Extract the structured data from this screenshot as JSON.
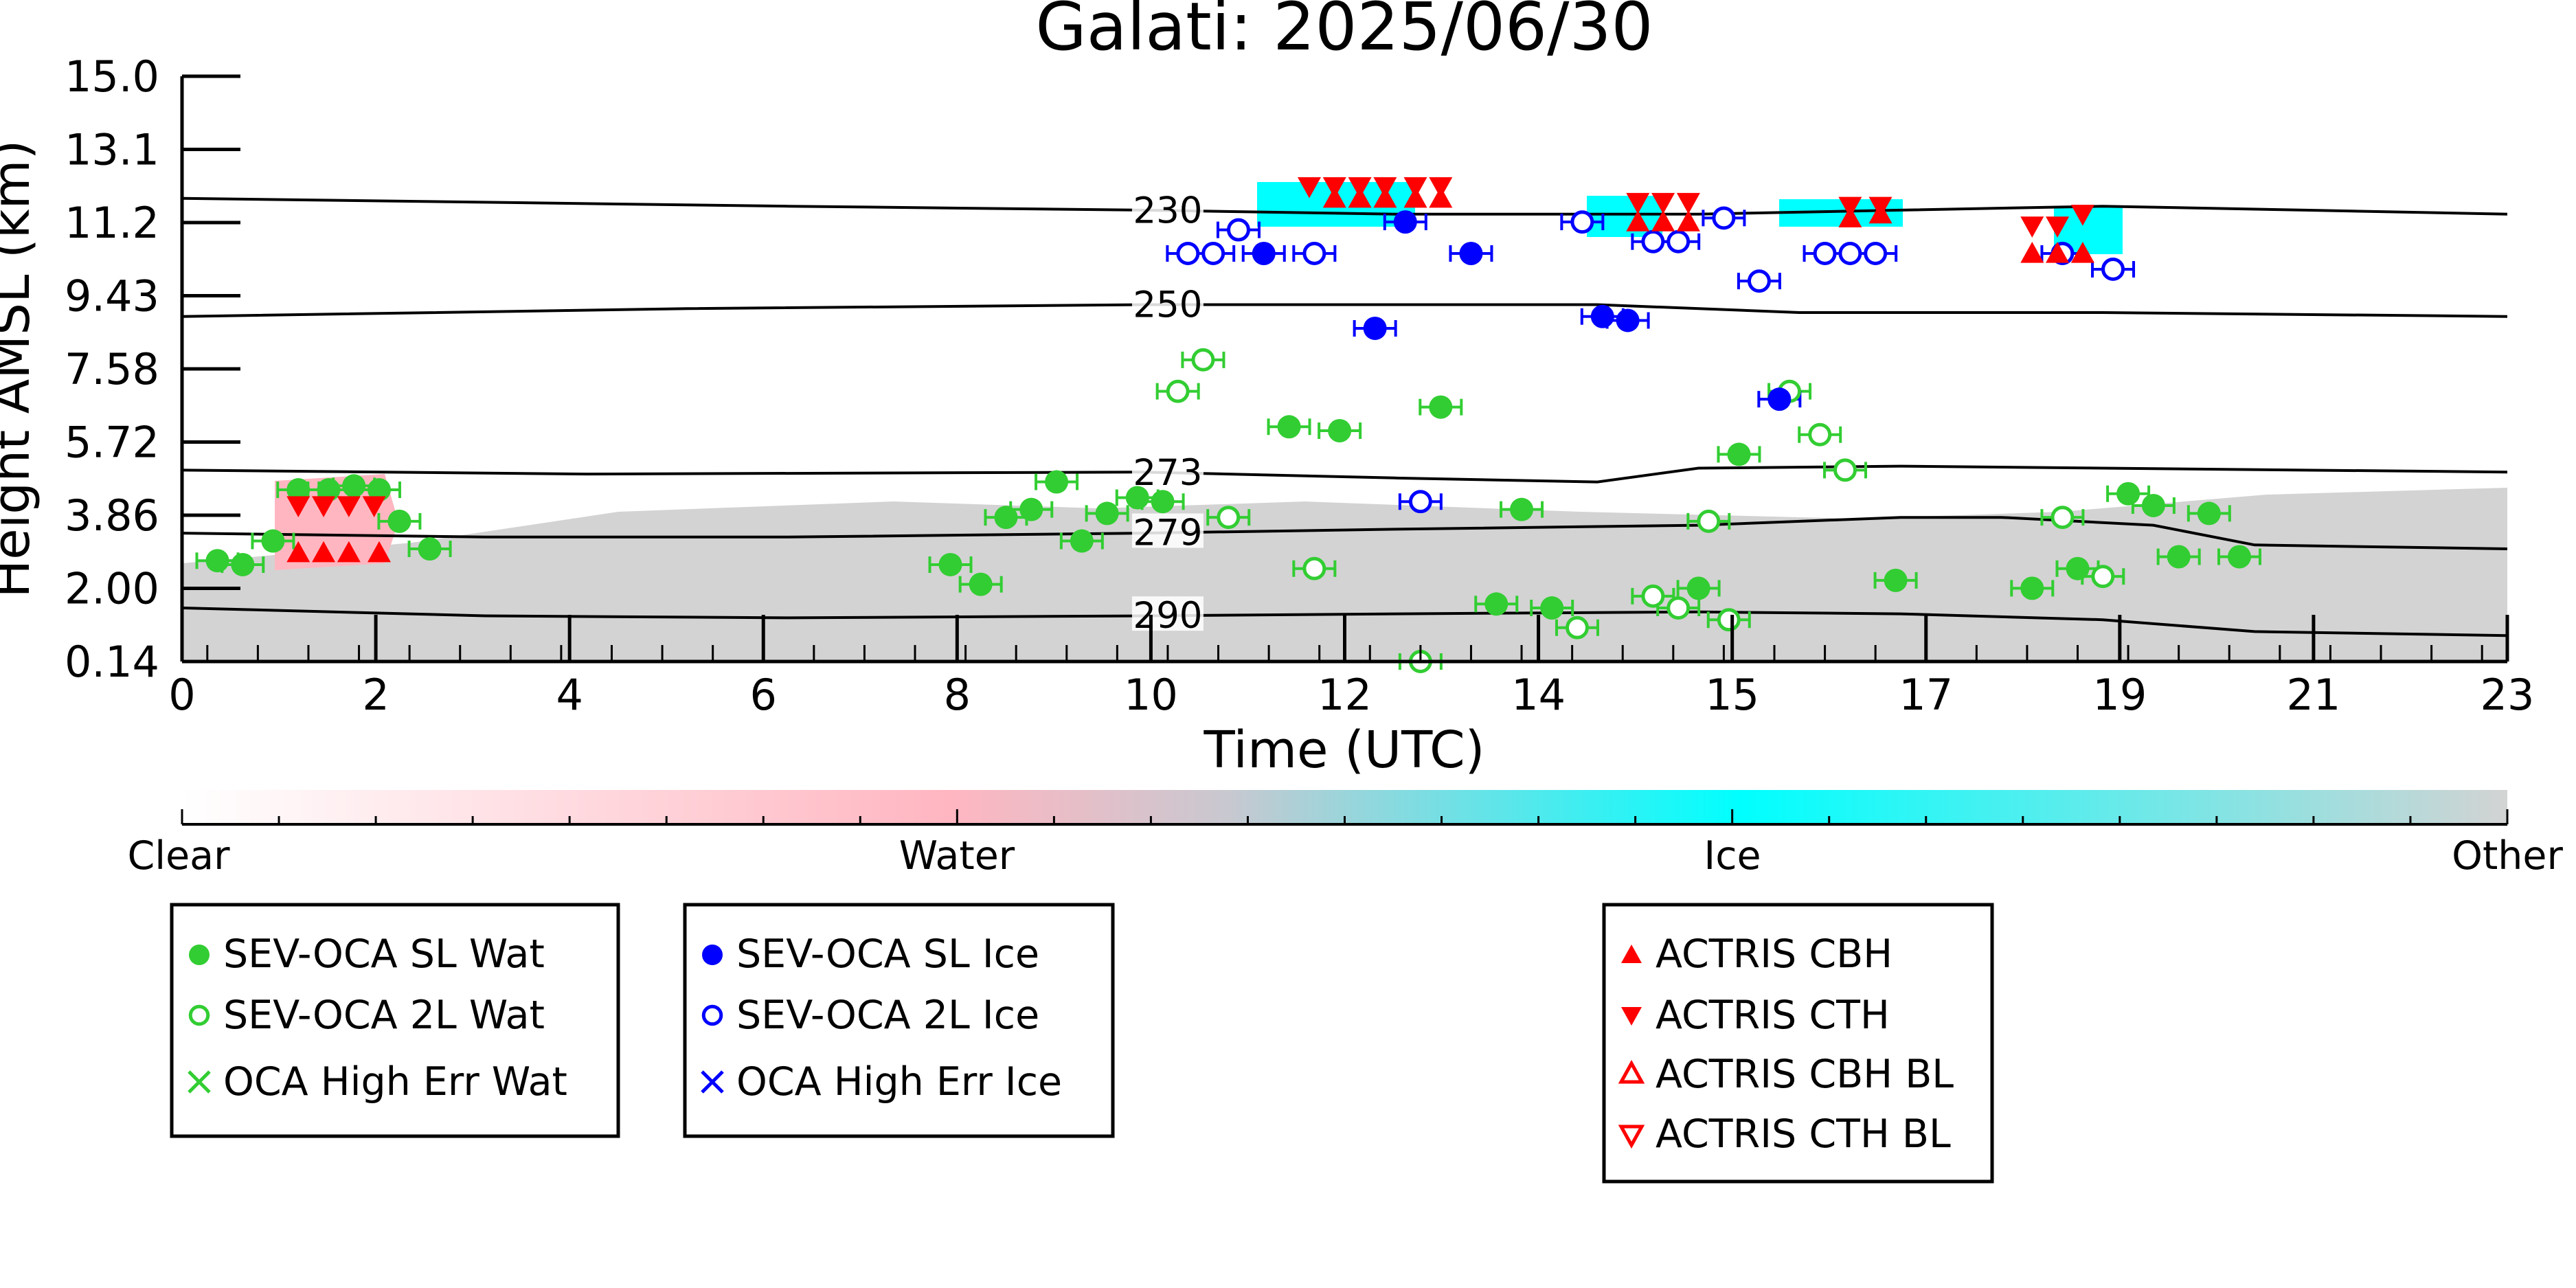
{
  "chart_data": {
    "type": "scatter",
    "title": "Galati: 2025/06/30",
    "xlabel": "Time (UTC)",
    "ylabel": "Height AMSL (km)",
    "xlim": [
      0,
      23
    ],
    "ylim": [
      0.14,
      15.0
    ],
    "x_ticks": [
      "0",
      "2",
      "4",
      "6",
      "8",
      "10",
      "12",
      "14",
      "15",
      "17",
      "19",
      "21",
      "23"
    ],
    "y_ticks": [
      "15.0",
      "13.1",
      "11.2",
      "9.43",
      "7.58",
      "5.72",
      "3.86",
      "2.00",
      "0.14"
    ],
    "colors": {
      "water": "#ffb6c1",
      "ice": "#00ffff",
      "other": "#d3d3d3",
      "sev_wat": "#32cd32",
      "sev_ice": "#0000ff",
      "actris": "#ff0000",
      "isotherm": "#000000"
    },
    "colorbar": {
      "labels": [
        "Clear",
        "Water",
        "Ice",
        "Other"
      ]
    },
    "isotherms": [
      {
        "label": "230",
        "points": [
          [
            0,
            11.9
          ],
          [
            6,
            11.7
          ],
          [
            9.5,
            11.6
          ],
          [
            12,
            11.5
          ],
          [
            15,
            11.5
          ],
          [
            17,
            11.6
          ],
          [
            19,
            11.7
          ],
          [
            21,
            11.6
          ],
          [
            23,
            11.5
          ]
        ]
      },
      {
        "label": "250",
        "points": [
          [
            0,
            8.9
          ],
          [
            5,
            9.1
          ],
          [
            9.5,
            9.2
          ],
          [
            12,
            9.2
          ],
          [
            14,
            9.2
          ],
          [
            16,
            9.0
          ],
          [
            19,
            9.0
          ],
          [
            23,
            8.9
          ]
        ]
      },
      {
        "label": "273",
        "points": [
          [
            0,
            5.0
          ],
          [
            4,
            4.9
          ],
          [
            9.5,
            4.95
          ],
          [
            12,
            4.8
          ],
          [
            14,
            4.7
          ],
          [
            15,
            5.05
          ],
          [
            17,
            5.1
          ],
          [
            19,
            5.05
          ],
          [
            23,
            4.95
          ]
        ]
      },
      {
        "label": "279",
        "points": [
          [
            0,
            3.4
          ],
          [
            3,
            3.3
          ],
          [
            6,
            3.3
          ],
          [
            9.5,
            3.4
          ],
          [
            12,
            3.5
          ],
          [
            15,
            3.6
          ],
          [
            17,
            3.8
          ],
          [
            18,
            3.8
          ],
          [
            19.5,
            3.6
          ],
          [
            20.5,
            3.1
          ],
          [
            23,
            3.0
          ]
        ]
      },
      {
        "label": "290",
        "points": [
          [
            0,
            1.5
          ],
          [
            3,
            1.3
          ],
          [
            6,
            1.25
          ],
          [
            9.5,
            1.3
          ],
          [
            12,
            1.35
          ],
          [
            15,
            1.4
          ],
          [
            17,
            1.35
          ],
          [
            19,
            1.2
          ],
          [
            20.5,
            0.9
          ],
          [
            23,
            0.8
          ]
        ]
      }
    ],
    "series": [
      {
        "name": "SEV-OCA SL Wat",
        "marker": "filled-circle",
        "color": "#32cd32",
        "points": [
          {
            "x": 0.35,
            "y": 2.7
          },
          {
            "x": 0.6,
            "y": 2.6
          },
          {
            "x": 0.9,
            "y": 3.2
          },
          {
            "x": 1.15,
            "y": 4.5
          },
          {
            "x": 1.45,
            "y": 4.5
          },
          {
            "x": 1.7,
            "y": 4.6
          },
          {
            "x": 1.95,
            "y": 4.5
          },
          {
            "x": 2.15,
            "y": 3.7
          },
          {
            "x": 2.45,
            "y": 3.0
          },
          {
            "x": 7.6,
            "y": 2.6
          },
          {
            "x": 7.9,
            "y": 2.1
          },
          {
            "x": 8.15,
            "y": 3.8
          },
          {
            "x": 8.4,
            "y": 4.0
          },
          {
            "x": 8.65,
            "y": 4.7
          },
          {
            "x": 8.9,
            "y": 3.2
          },
          {
            "x": 9.15,
            "y": 3.9
          },
          {
            "x": 9.45,
            "y": 4.3
          },
          {
            "x": 9.7,
            "y": 4.2
          },
          {
            "x": 10.95,
            "y": 6.1
          },
          {
            "x": 11.45,
            "y": 6.0
          },
          {
            "x": 12.45,
            "y": 6.6
          },
          {
            "x": 13.0,
            "y": 1.6
          },
          {
            "x": 13.25,
            "y": 4.0
          },
          {
            "x": 13.55,
            "y": 1.5
          },
          {
            "x": 15.0,
            "y": 2.0
          },
          {
            "x": 15.4,
            "y": 5.4
          },
          {
            "x": 16.95,
            "y": 2.2
          },
          {
            "x": 18.3,
            "y": 2.0
          },
          {
            "x": 18.75,
            "y": 2.5
          },
          {
            "x": 19.25,
            "y": 4.4
          },
          {
            "x": 19.5,
            "y": 4.1
          },
          {
            "x": 19.75,
            "y": 2.8
          },
          {
            "x": 20.05,
            "y": 3.9
          },
          {
            "x": 20.35,
            "y": 2.8
          }
        ]
      },
      {
        "name": "SEV-OCA 2L Wat",
        "marker": "open-circle",
        "color": "#32cd32",
        "points": [
          {
            "x": 9.85,
            "y": 7.0
          },
          {
            "x": 10.1,
            "y": 7.8
          },
          {
            "x": 10.35,
            "y": 3.8
          },
          {
            "x": 11.2,
            "y": 2.5
          },
          {
            "x": 12.25,
            "y": 0.14
          },
          {
            "x": 13.8,
            "y": 1.0
          },
          {
            "x": 14.55,
            "y": 1.8
          },
          {
            "x": 14.8,
            "y": 1.5
          },
          {
            "x": 15.1,
            "y": 3.7
          },
          {
            "x": 15.3,
            "y": 1.2
          },
          {
            "x": 15.9,
            "y": 7.0
          },
          {
            "x": 16.2,
            "y": 5.9
          },
          {
            "x": 16.45,
            "y": 5.0
          },
          {
            "x": 18.6,
            "y": 3.8
          },
          {
            "x": 19.0,
            "y": 2.3
          }
        ]
      },
      {
        "name": "OCA High Err Wat",
        "marker": "x",
        "color": "#32cd32",
        "points": []
      },
      {
        "name": "SEV-OCA SL Ice",
        "marker": "filled-circle",
        "color": "#0000ff",
        "points": [
          {
            "x": 10.7,
            "y": 10.5
          },
          {
            "x": 11.8,
            "y": 8.6
          },
          {
            "x": 12.1,
            "y": 11.3
          },
          {
            "x": 12.75,
            "y": 10.5
          },
          {
            "x": 14.05,
            "y": 8.9
          },
          {
            "x": 14.3,
            "y": 8.8
          },
          {
            "x": 15.8,
            "y": 6.8
          }
        ]
      },
      {
        "name": "SEV-OCA 2L Ice",
        "marker": "open-circle",
        "color": "#0000ff",
        "points": [
          {
            "x": 9.95,
            "y": 10.5
          },
          {
            "x": 10.2,
            "y": 10.5
          },
          {
            "x": 10.45,
            "y": 11.1
          },
          {
            "x": 11.2,
            "y": 10.5
          },
          {
            "x": 12.25,
            "y": 4.2
          },
          {
            "x": 13.85,
            "y": 11.3
          },
          {
            "x": 14.55,
            "y": 10.8
          },
          {
            "x": 14.8,
            "y": 10.8
          },
          {
            "x": 15.25,
            "y": 11.4
          },
          {
            "x": 15.6,
            "y": 9.8
          },
          {
            "x": 16.25,
            "y": 10.5
          },
          {
            "x": 16.5,
            "y": 10.5
          },
          {
            "x": 16.75,
            "y": 10.5
          },
          {
            "x": 18.6,
            "y": 10.5
          },
          {
            "x": 19.1,
            "y": 10.1
          }
        ]
      },
      {
        "name": "OCA High Err Ice",
        "marker": "x",
        "color": "#0000ff",
        "points": []
      },
      {
        "name": "ACTRIS CBH",
        "marker": "triangle-up-filled",
        "color": "#ff0000",
        "points": [
          {
            "x": 1.15,
            "y": 2.9
          },
          {
            "x": 1.4,
            "y": 2.9
          },
          {
            "x": 1.65,
            "y": 2.9
          },
          {
            "x": 1.95,
            "y": 2.9
          },
          {
            "x": 11.4,
            "y": 11.9
          },
          {
            "x": 11.65,
            "y": 11.9
          },
          {
            "x": 11.9,
            "y": 11.9
          },
          {
            "x": 12.2,
            "y": 11.9
          },
          {
            "x": 12.45,
            "y": 11.9
          },
          {
            "x": 14.4,
            "y": 11.3
          },
          {
            "x": 14.65,
            "y": 11.3
          },
          {
            "x": 14.9,
            "y": 11.3
          },
          {
            "x": 16.5,
            "y": 11.4
          },
          {
            "x": 16.8,
            "y": 11.5
          },
          {
            "x": 18.3,
            "y": 10.5
          },
          {
            "x": 18.55,
            "y": 10.5
          },
          {
            "x": 18.8,
            "y": 10.5
          }
        ]
      },
      {
        "name": "ACTRIS CTH",
        "marker": "triangle-down-filled",
        "color": "#ff0000",
        "points": [
          {
            "x": 1.15,
            "y": 4.1
          },
          {
            "x": 1.4,
            "y": 4.1
          },
          {
            "x": 1.65,
            "y": 4.1
          },
          {
            "x": 1.9,
            "y": 4.1
          },
          {
            "x": 11.15,
            "y": 12.2
          },
          {
            "x": 11.4,
            "y": 12.2
          },
          {
            "x": 11.65,
            "y": 12.2
          },
          {
            "x": 11.9,
            "y": 12.2
          },
          {
            "x": 12.2,
            "y": 12.2
          },
          {
            "x": 12.45,
            "y": 12.2
          },
          {
            "x": 14.4,
            "y": 11.8
          },
          {
            "x": 14.65,
            "y": 11.8
          },
          {
            "x": 14.9,
            "y": 11.8
          },
          {
            "x": 16.5,
            "y": 11.7
          },
          {
            "x": 16.8,
            "y": 11.7
          },
          {
            "x": 18.3,
            "y": 11.2
          },
          {
            "x": 18.55,
            "y": 11.2
          },
          {
            "x": 18.8,
            "y": 11.5
          }
        ]
      },
      {
        "name": "ACTRIS CBH BL",
        "marker": "triangle-up-open",
        "color": "#ff0000",
        "points": []
      },
      {
        "name": "ACTRIS CTH BL",
        "marker": "triangle-down-open",
        "color": "#ff0000",
        "points": []
      }
    ],
    "legend_placement": "below"
  }
}
